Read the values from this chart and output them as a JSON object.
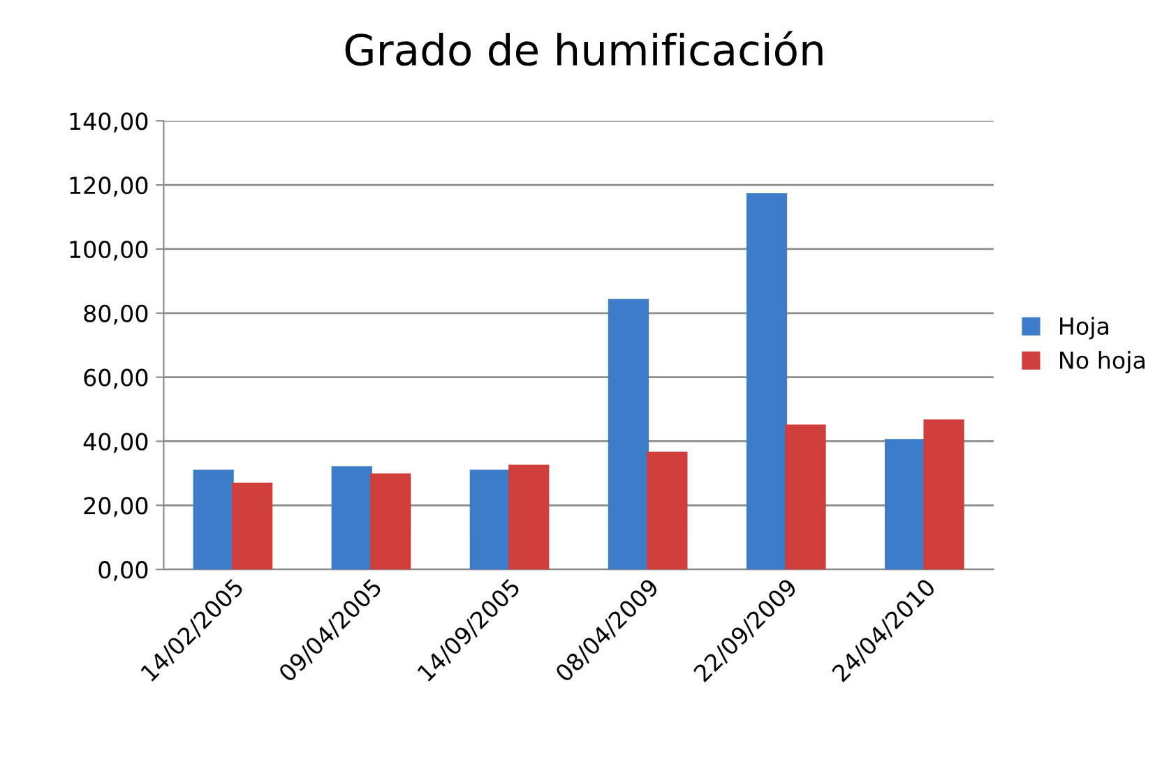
{
  "chart_data": {
    "type": "bar",
    "title": "Grado de humificación",
    "categories": [
      "14/02/2005",
      "09/04/2005",
      "14/09/2005",
      "08/04/2009",
      "22/09/2009",
      "24/04/2010"
    ],
    "series": [
      {
        "name": "Hoja",
        "color": "#3d7cc9",
        "values": [
          30.8,
          31.9,
          30.8,
          84.1,
          117.1,
          40.4
        ]
      },
      {
        "name": "No hoja",
        "color": "#d03e3b",
        "values": [
          26.8,
          29.7,
          32.4,
          36.4,
          44.9,
          46.5
        ]
      }
    ],
    "ylim": [
      0,
      140
    ],
    "yticks": [
      {
        "value": 0,
        "label": "0,00"
      },
      {
        "value": 20,
        "label": "20,00"
      },
      {
        "value": 40,
        "label": "40,00"
      },
      {
        "value": 60,
        "label": "60,00"
      },
      {
        "value": 80,
        "label": "80,00"
      },
      {
        "value": 100,
        "label": "100,00"
      },
      {
        "value": 120,
        "label": "120,00"
      },
      {
        "value": 140,
        "label": "140,00"
      }
    ],
    "grid": "y",
    "legend": "right"
  }
}
